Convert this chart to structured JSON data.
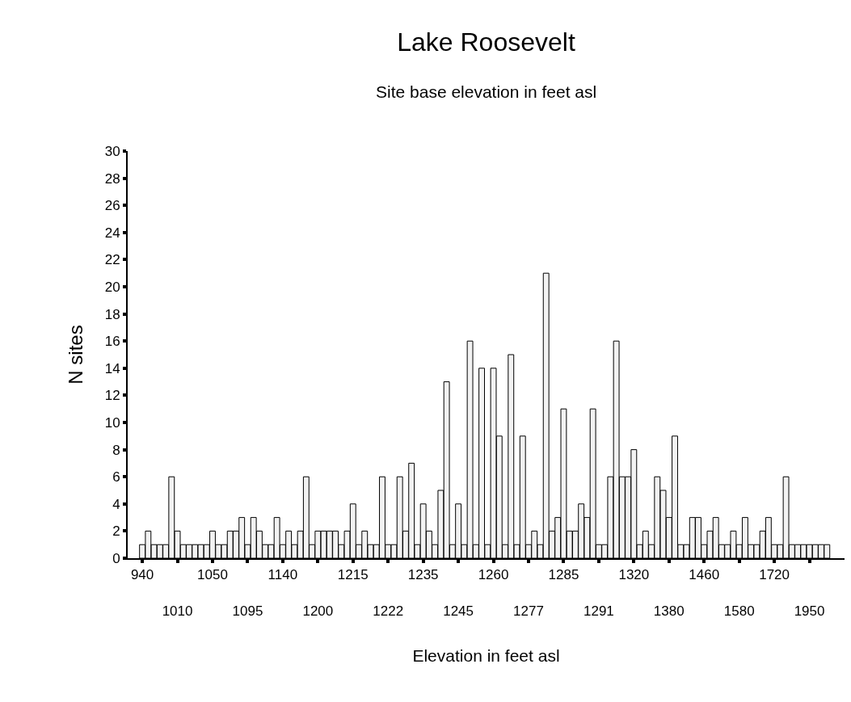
{
  "chart_data": {
    "type": "bar",
    "title": "Lake Roosevelt",
    "subtitle": "Site base elevation in feet asl",
    "xlabel": "Elevation in feet asl",
    "ylabel": "N sites",
    "categories": [
      "940",
      null,
      null,
      null,
      null,
      null,
      "1010",
      null,
      null,
      null,
      null,
      null,
      "1050",
      null,
      null,
      null,
      null,
      null,
      "1095",
      null,
      null,
      null,
      null,
      null,
      "1140",
      null,
      null,
      null,
      null,
      null,
      "1200",
      null,
      null,
      null,
      null,
      null,
      "1215",
      null,
      null,
      null,
      null,
      null,
      "1222",
      null,
      null,
      null,
      null,
      null,
      "1235",
      null,
      null,
      null,
      null,
      null,
      "1245",
      null,
      null,
      null,
      null,
      null,
      "1260",
      null,
      null,
      null,
      null,
      null,
      "1277",
      null,
      null,
      null,
      null,
      null,
      "1285",
      null,
      null,
      null,
      null,
      null,
      "1291",
      null,
      null,
      null,
      null,
      null,
      "1320",
      null,
      null,
      null,
      null,
      null,
      "1380",
      null,
      null,
      null,
      null,
      null,
      "1460",
      null,
      null,
      null,
      null,
      null,
      "1580",
      null,
      null,
      null,
      null,
      null,
      "1720",
      null,
      null,
      null,
      null,
      null,
      "1950",
      null,
      null,
      null
    ],
    "values": [
      1,
      2,
      1,
      1,
      1,
      6,
      2,
      1,
      1,
      1,
      1,
      1,
      2,
      1,
      1,
      2,
      2,
      3,
      1,
      3,
      2,
      1,
      1,
      3,
      1,
      2,
      1,
      2,
      6,
      1,
      2,
      2,
      2,
      2,
      1,
      2,
      4,
      1,
      2,
      1,
      1,
      6,
      1,
      1,
      6,
      2,
      7,
      1,
      4,
      2,
      1,
      5,
      13,
      1,
      4,
      1,
      16,
      1,
      14,
      1,
      14,
      9,
      1,
      15,
      1,
      9,
      1,
      2,
      1,
      21,
      2,
      3,
      11,
      2,
      2,
      4,
      3,
      11,
      1,
      1,
      6,
      16,
      6,
      6,
      8,
      1,
      2,
      1,
      6,
      5,
      3,
      9,
      1,
      1,
      3,
      3,
      1,
      2,
      3,
      1,
      1,
      2,
      1,
      3,
      1,
      1,
      2,
      3,
      1,
      1,
      6,
      1,
      1,
      1,
      1,
      1,
      1,
      1
    ],
    "color": "#f2f2f2",
    "ylim": [
      0,
      30
    ],
    "yticks": [
      0,
      2,
      4,
      6,
      8,
      10,
      12,
      14,
      16,
      18,
      20,
      22,
      24,
      26,
      28,
      30
    ]
  }
}
